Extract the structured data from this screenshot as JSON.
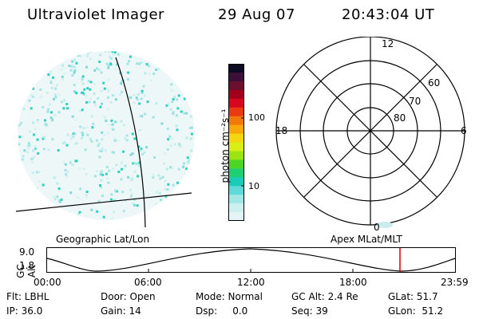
{
  "header": {
    "title": "Ultraviolet Imager",
    "date": "29 Aug 07",
    "time": "20:43:04 UT"
  },
  "colorbar": {
    "label": "photon cm⁻²s⁻¹",
    "ticks": [
      "100",
      "10"
    ],
    "colors": [
      "#0b0b24",
      "#3b1038",
      "#6a0f2e",
      "#a0001c",
      "#d4081f",
      "#ea3a12",
      "#f3780c",
      "#f8a80a",
      "#f4d511",
      "#d8ee14",
      "#9be412",
      "#4ed624",
      "#1fcf71",
      "#19ccb8",
      "#5fd9d8",
      "#9fe8e6",
      "#cdefef",
      "#e4f3f3"
    ]
  },
  "polar": {
    "lat_labels": [
      "60",
      "70",
      "80"
    ],
    "mlt_labels": {
      "top": "12",
      "left": "18",
      "right": "6",
      "bottom": "0"
    }
  },
  "plot_titles": {
    "left": "Geographic Lat/Lon",
    "right": "Apex MLat/MLT"
  },
  "altitude_plot": {
    "ylabel": "GC Alt",
    "ymax": "9.0",
    "ymin": "1.8",
    "x_ticks": [
      "00:00",
      "06:00",
      "12:00",
      "18:00",
      "23:59"
    ],
    "marker_color": "#d40000"
  },
  "info": {
    "filter": "Flt: LBHL",
    "door": "Door: Open",
    "mode": "Mode: Normal",
    "gc_alt": "GC Alt: 2.4 Re",
    "glat": "GLat: 51.7",
    "ip": "IP: 36.0",
    "gain": "Gain: 14",
    "dsp": "Dsp:     0.0",
    "seq": "Seq: 39",
    "glon": "GLon:  51.2"
  }
}
